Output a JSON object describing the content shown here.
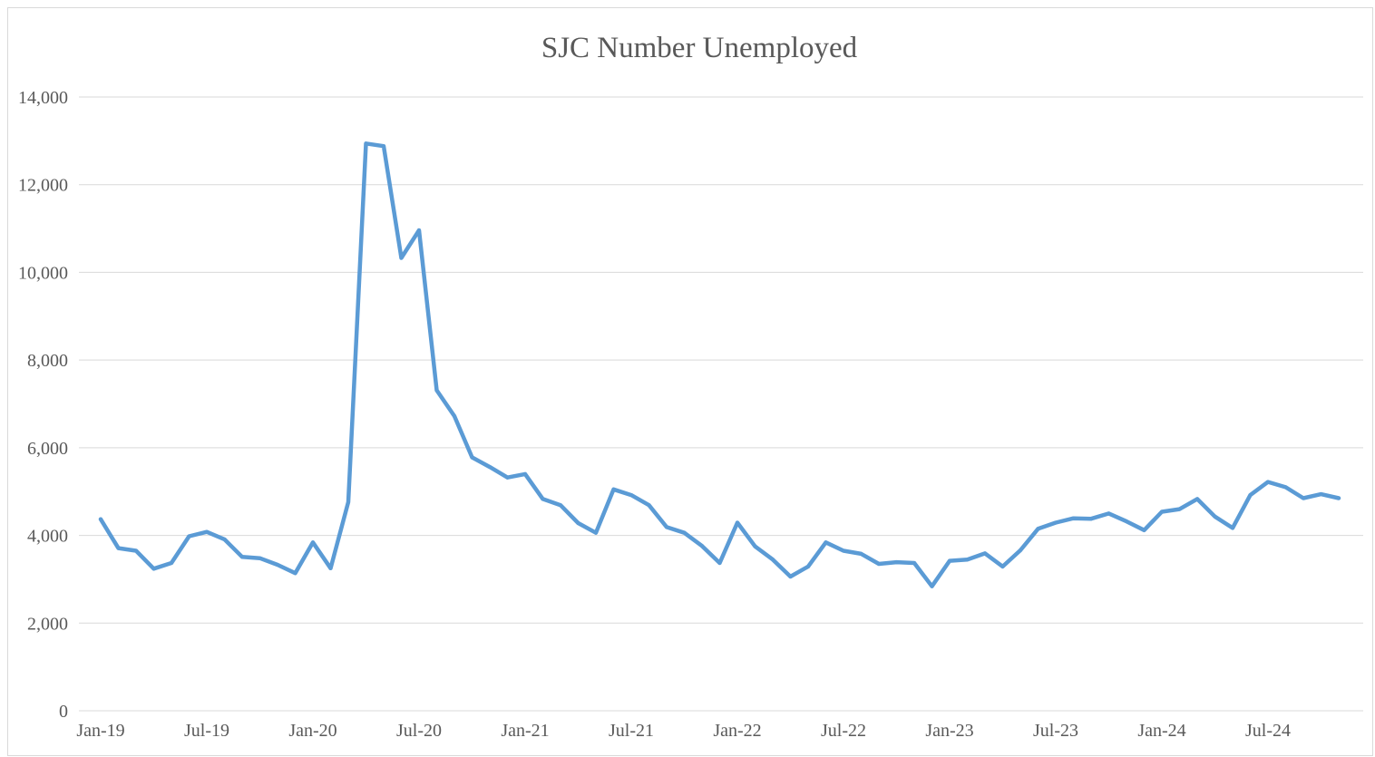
{
  "chart_data": {
    "type": "line",
    "title": "SJC Number Unemployed",
    "xlabel": "",
    "ylabel": "",
    "ylim": [
      0,
      14000
    ],
    "y_ticks": [
      "0",
      "2,000",
      "4,000",
      "6,000",
      "8,000",
      "10,000",
      "12,000",
      "14,000"
    ],
    "x_ticks": [
      "Jan-19",
      "Jul-19",
      "Jan-20",
      "Jul-20",
      "Jan-21",
      "Jul-21",
      "Jan-22",
      "Jul-22",
      "Jan-23",
      "Jul-23",
      "Jan-24",
      "Jul-24"
    ],
    "grid": true,
    "legend": "none",
    "line_color": "#5b9bd5",
    "x": [
      "Jan-19",
      "Feb-19",
      "Mar-19",
      "Apr-19",
      "May-19",
      "Jun-19",
      "Jul-19",
      "Aug-19",
      "Sep-19",
      "Oct-19",
      "Nov-19",
      "Dec-19",
      "Jan-20",
      "Feb-20",
      "Mar-20",
      "Apr-20",
      "May-20",
      "Jun-20",
      "Jul-20",
      "Aug-20",
      "Sep-20",
      "Oct-20",
      "Nov-20",
      "Dec-20",
      "Jan-21",
      "Feb-21",
      "Mar-21",
      "Apr-21",
      "May-21",
      "Jun-21",
      "Jul-21",
      "Aug-21",
      "Sep-21",
      "Oct-21",
      "Nov-21",
      "Dec-21",
      "Jan-22",
      "Feb-22",
      "Mar-22",
      "Apr-22",
      "May-22",
      "Jun-22",
      "Jul-22",
      "Aug-22",
      "Sep-22",
      "Oct-22",
      "Nov-22",
      "Dec-22",
      "Jan-23",
      "Feb-23",
      "Mar-23",
      "Apr-23",
      "May-23",
      "Jun-23",
      "Jul-23",
      "Aug-23",
      "Sep-23",
      "Oct-23",
      "Nov-23",
      "Dec-23",
      "Jan-24",
      "Feb-24",
      "Mar-24",
      "Apr-24",
      "May-24",
      "Jun-24",
      "Jul-24",
      "Aug-24",
      "Sep-24",
      "Oct-24",
      "Nov-24"
    ],
    "series": [
      {
        "values": [
          4370,
          3710,
          3650,
          3240,
          3370,
          3980,
          4080,
          3910,
          3510,
          3480,
          3330,
          3140,
          3840,
          3250,
          4760,
          12940,
          12880,
          10330,
          10960,
          7310,
          6720,
          5780,
          5560,
          5320,
          5400,
          4830,
          4690,
          4280,
          4060,
          5050,
          4920,
          4690,
          4190,
          4060,
          3760,
          3370,
          4290,
          3750,
          3450,
          3060,
          3290,
          3840,
          3650,
          3580,
          3350,
          3390,
          3370,
          2840,
          3420,
          3450,
          3590,
          3290,
          3660,
          4150,
          4290,
          4390,
          4380,
          4500,
          4320,
          4120,
          4540,
          4600,
          4830,
          4430,
          4170,
          4920,
          5220,
          5100,
          4850,
          4940,
          4850
        ]
      }
    ]
  }
}
